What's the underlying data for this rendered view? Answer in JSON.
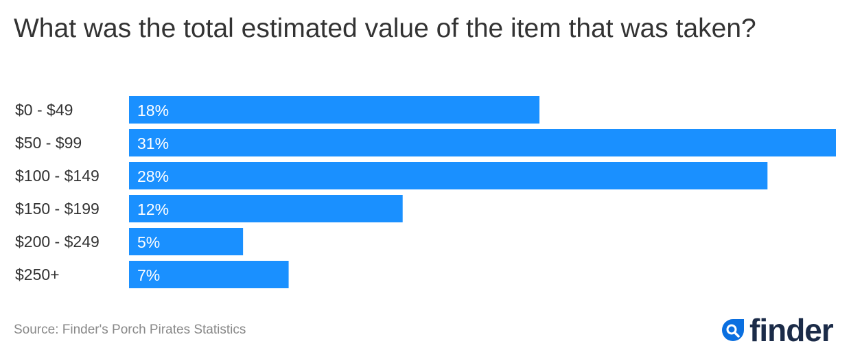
{
  "chart_data": {
    "type": "bar",
    "orientation": "horizontal",
    "title": "What was the total estimated value of the item that was taken?",
    "categories": [
      "$0 - $49",
      "$50 - $99",
      "$100 - $149",
      "$150 - $199",
      "$200 - $249",
      "$250+"
    ],
    "values": [
      18,
      31,
      28,
      12,
      5,
      7
    ],
    "value_labels": [
      "18%",
      "31%",
      "28%",
      "12%",
      "5%",
      "7%"
    ],
    "unit": "%",
    "xlim": [
      0,
      31
    ],
    "grid": false,
    "bar_color": "#1a90ff"
  },
  "source": "Source: Finder's Porch Pirates Statistics",
  "logo": {
    "text": "finder",
    "icon": "search-drop-icon",
    "color": "#1b2b48",
    "accent": "#0a6fe0"
  }
}
